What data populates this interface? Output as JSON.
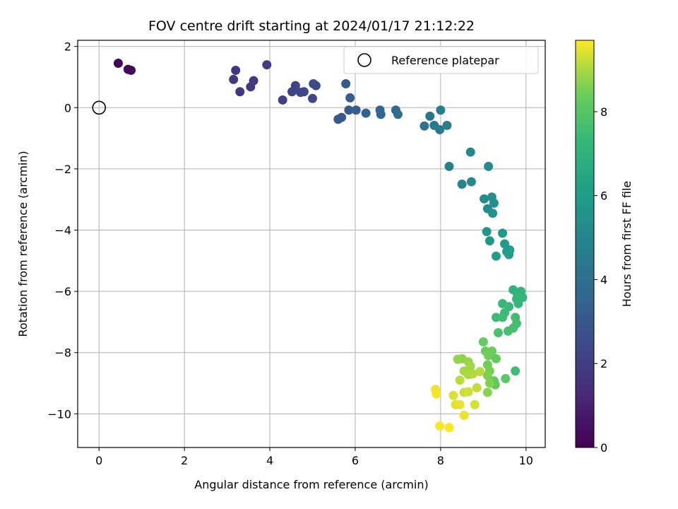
{
  "chart_data": {
    "type": "scatter",
    "title": "FOV centre drift starting at 2024/01/17 21:12:22",
    "xlabel": "Angular distance from reference (arcmin)",
    "ylabel": "Rotation from reference (arcmin)",
    "xlim": [
      -0.5,
      10.45
    ],
    "ylim": [
      -11.1,
      2.2
    ],
    "xticks": [
      "0",
      "2",
      "4",
      "6",
      "8",
      "10"
    ],
    "yticks": [
      "−10",
      "−8",
      "−6",
      "−4",
      "−2",
      "0",
      "2"
    ],
    "grid": true,
    "legend": {
      "placement": "top-right",
      "entries": [
        "Reference platepar"
      ]
    },
    "reference_point": {
      "x": 0,
      "y": 0
    },
    "colorbar": {
      "label": "Hours from first FF file",
      "range": [
        0,
        9.7
      ],
      "ticks": [
        "0",
        "2",
        "4",
        "6",
        "8"
      ],
      "colormap": "viridis"
    },
    "series": [
      {
        "points": [
          {
            "x": 0.45,
            "y": 1.45,
            "c": 0.1
          },
          {
            "x": 0.68,
            "y": 1.25,
            "c": 0.25
          },
          {
            "x": 0.75,
            "y": 1.22,
            "c": 0.35
          },
          {
            "x": 3.2,
            "y": 1.22,
            "c": 1.7
          },
          {
            "x": 3.15,
            "y": 0.92,
            "c": 1.75
          },
          {
            "x": 3.3,
            "y": 0.52,
            "c": 1.8
          },
          {
            "x": 3.55,
            "y": 0.68,
            "c": 1.85
          },
          {
            "x": 3.62,
            "y": 0.88,
            "c": 1.9
          },
          {
            "x": 3.93,
            "y": 1.4,
            "c": 2.0
          },
          {
            "x": 4.3,
            "y": 0.25,
            "c": 2.1
          },
          {
            "x": 4.52,
            "y": 0.52,
            "c": 2.2
          },
          {
            "x": 4.6,
            "y": 0.72,
            "c": 2.25
          },
          {
            "x": 4.72,
            "y": 0.5,
            "c": 2.3
          },
          {
            "x": 4.8,
            "y": 0.52,
            "c": 2.35
          },
          {
            "x": 5.0,
            "y": 0.3,
            "c": 2.4
          },
          {
            "x": 5.02,
            "y": 0.78,
            "c": 2.45
          },
          {
            "x": 5.08,
            "y": 0.72,
            "c": 2.5
          },
          {
            "x": 5.6,
            "y": -0.38,
            "c": 3.0
          },
          {
            "x": 5.68,
            "y": -0.32,
            "c": 3.05
          },
          {
            "x": 5.78,
            "y": 0.78,
            "c": 3.1
          },
          {
            "x": 5.85,
            "y": -0.08,
            "c": 3.15
          },
          {
            "x": 5.88,
            "y": 0.32,
            "c": 3.2
          },
          {
            "x": 6.02,
            "y": -0.08,
            "c": 3.3
          },
          {
            "x": 6.25,
            "y": -0.18,
            "c": 3.45
          },
          {
            "x": 6.58,
            "y": -0.08,
            "c": 3.6
          },
          {
            "x": 6.6,
            "y": -0.22,
            "c": 3.65
          },
          {
            "x": 6.95,
            "y": -0.08,
            "c": 3.8
          },
          {
            "x": 7.0,
            "y": -0.22,
            "c": 3.85
          },
          {
            "x": 7.62,
            "y": -0.6,
            "c": 4.2
          },
          {
            "x": 7.75,
            "y": -0.28,
            "c": 4.3
          },
          {
            "x": 7.85,
            "y": -0.58,
            "c": 4.4
          },
          {
            "x": 7.98,
            "y": -0.72,
            "c": 4.5
          },
          {
            "x": 8.0,
            "y": -0.08,
            "c": 4.6
          },
          {
            "x": 8.15,
            "y": -0.58,
            "c": 4.7
          },
          {
            "x": 8.2,
            "y": -1.92,
            "c": 4.8
          },
          {
            "x": 8.5,
            "y": -2.5,
            "c": 5.0
          },
          {
            "x": 8.7,
            "y": -1.45,
            "c": 5.05
          },
          {
            "x": 8.72,
            "y": -2.42,
            "c": 5.1
          },
          {
            "x": 9.02,
            "y": -2.98,
            "c": 5.3
          },
          {
            "x": 9.12,
            "y": -1.92,
            "c": 5.25
          },
          {
            "x": 9.1,
            "y": -3.3,
            "c": 5.4
          },
          {
            "x": 9.2,
            "y": -2.92,
            "c": 5.45
          },
          {
            "x": 9.25,
            "y": -3.12,
            "c": 5.5
          },
          {
            "x": 9.22,
            "y": -3.45,
            "c": 5.55
          },
          {
            "x": 9.08,
            "y": -4.05,
            "c": 5.7
          },
          {
            "x": 9.15,
            "y": -4.35,
            "c": 5.75
          },
          {
            "x": 9.45,
            "y": -4.1,
            "c": 5.85
          },
          {
            "x": 9.5,
            "y": -4.45,
            "c": 5.9
          },
          {
            "x": 9.55,
            "y": -4.7,
            "c": 6.0
          },
          {
            "x": 9.6,
            "y": -4.8,
            "c": 6.05
          },
          {
            "x": 9.62,
            "y": -4.65,
            "c": 6.1
          },
          {
            "x": 9.3,
            "y": -4.85,
            "c": 6.15
          },
          {
            "x": 9.7,
            "y": -5.95,
            "c": 7.0
          },
          {
            "x": 9.8,
            "y": -6.1,
            "c": 7.05
          },
          {
            "x": 9.88,
            "y": -6.0,
            "c": 7.1
          },
          {
            "x": 9.92,
            "y": -6.2,
            "c": 7.15
          },
          {
            "x": 9.78,
            "y": -6.25,
            "c": 7.2
          },
          {
            "x": 9.82,
            "y": -6.4,
            "c": 7.25
          },
          {
            "x": 9.45,
            "y": -6.4,
            "c": 7.3
          },
          {
            "x": 9.6,
            "y": -6.5,
            "c": 7.35
          },
          {
            "x": 9.5,
            "y": -6.7,
            "c": 7.4
          },
          {
            "x": 9.45,
            "y": -6.85,
            "c": 7.45
          },
          {
            "x": 9.3,
            "y": -6.85,
            "c": 7.5
          },
          {
            "x": 9.75,
            "y": -6.85,
            "c": 7.55
          },
          {
            "x": 9.78,
            "y": -7.05,
            "c": 7.6
          },
          {
            "x": 9.7,
            "y": -7.2,
            "c": 7.65
          },
          {
            "x": 9.58,
            "y": -7.3,
            "c": 7.7
          },
          {
            "x": 9.35,
            "y": -7.35,
            "c": 7.75
          },
          {
            "x": 9.75,
            "y": -8.6,
            "c": 7.5
          },
          {
            "x": 9.0,
            "y": -7.65,
            "c": 8.3
          },
          {
            "x": 9.05,
            "y": -7.95,
            "c": 8.35
          },
          {
            "x": 9.2,
            "y": -7.95,
            "c": 8.4
          },
          {
            "x": 9.12,
            "y": -8.1,
            "c": 8.45
          },
          {
            "x": 9.3,
            "y": -8.2,
            "c": 8.3
          },
          {
            "x": 9.1,
            "y": -8.4,
            "c": 8.5
          },
          {
            "x": 9.15,
            "y": -8.6,
            "c": 8.55
          },
          {
            "x": 9.1,
            "y": -8.75,
            "c": 8.6
          },
          {
            "x": 9.25,
            "y": -8.92,
            "c": 8.25
          },
          {
            "x": 9.28,
            "y": -9.05,
            "c": 8.2
          },
          {
            "x": 9.15,
            "y": -9.0,
            "c": 8.65
          },
          {
            "x": 9.1,
            "y": -9.3,
            "c": 8.7
          },
          {
            "x": 9.52,
            "y": -8.85,
            "c": 8.1
          },
          {
            "x": 8.5,
            "y": -8.2,
            "c": 8.75
          },
          {
            "x": 8.4,
            "y": -8.22,
            "c": 8.8
          },
          {
            "x": 8.65,
            "y": -8.3,
            "c": 8.85
          },
          {
            "x": 8.7,
            "y": -8.45,
            "c": 8.9
          },
          {
            "x": 8.55,
            "y": -8.6,
            "c": 8.95
          },
          {
            "x": 8.65,
            "y": -8.72,
            "c": 9.0
          },
          {
            "x": 8.75,
            "y": -8.7,
            "c": 9.05
          },
          {
            "x": 8.92,
            "y": -8.62,
            "c": 9.1
          },
          {
            "x": 8.45,
            "y": -8.9,
            "c": 9.15
          },
          {
            "x": 8.85,
            "y": -9.15,
            "c": 9.2
          },
          {
            "x": 8.55,
            "y": -9.3,
            "c": 9.25
          },
          {
            "x": 8.65,
            "y": -9.28,
            "c": 9.3
          },
          {
            "x": 8.8,
            "y": -9.7,
            "c": 9.35
          },
          {
            "x": 8.3,
            "y": -9.4,
            "c": 9.4
          },
          {
            "x": 8.35,
            "y": -9.7,
            "c": 9.45
          },
          {
            "x": 8.45,
            "y": -9.7,
            "c": 9.5
          },
          {
            "x": 8.55,
            "y": -10.05,
            "c": 9.55
          },
          {
            "x": 7.88,
            "y": -9.2,
            "c": 9.6
          },
          {
            "x": 7.9,
            "y": -9.35,
            "c": 9.62
          },
          {
            "x": 7.98,
            "y": -10.4,
            "c": 9.65
          },
          {
            "x": 8.2,
            "y": -10.45,
            "c": 9.7
          }
        ]
      }
    ]
  }
}
